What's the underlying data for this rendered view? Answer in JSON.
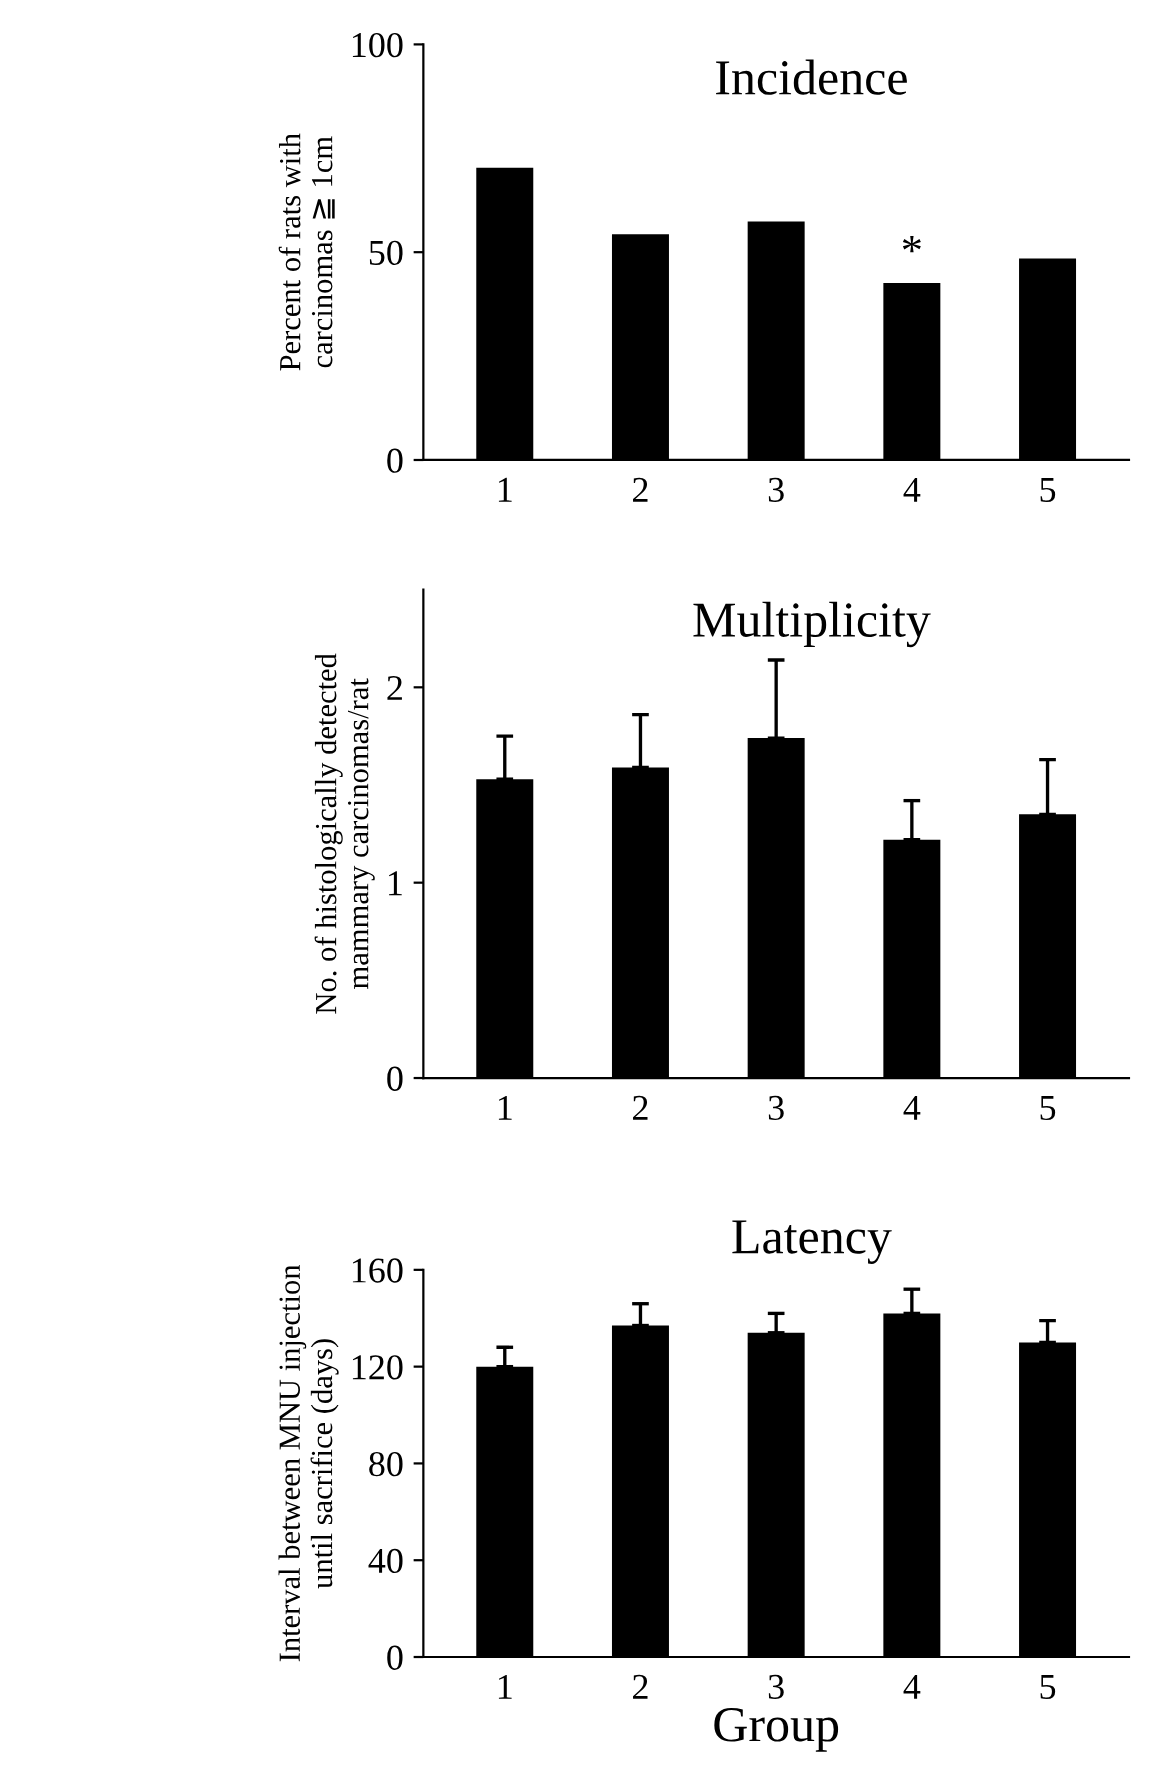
{
  "chart_data": [
    {
      "type": "bar",
      "title": "Incidence",
      "ylabel": "Percent of rats with\ncarcinomas ≧ 1cm",
      "categories": [
        "1",
        "2",
        "3",
        "4",
        "5"
      ],
      "values": [
        70.3,
        54.3,
        57.4,
        42.6,
        48.5
      ],
      "color": "#000000",
      "ylim": [
        0,
        100
      ],
      "yticks": [
        0,
        50,
        100
      ],
      "annotations": [
        {
          "text": "*",
          "x": "4",
          "y": 42.6
        }
      ]
    },
    {
      "type": "bar",
      "title": "Multiplicity",
      "ylabel": "No. of histologically detected\nmammary carcinomas/rat",
      "categories": [
        "1",
        "2",
        "3",
        "4",
        "5"
      ],
      "values": [
        1.53,
        1.59,
        1.74,
        1.22,
        1.35
      ],
      "errors": [
        [
          1.53,
          1.75
        ],
        [
          1.59,
          1.86
        ],
        [
          1.74,
          2.14
        ],
        [
          1.22,
          1.42
        ],
        [
          1.35,
          1.63
        ]
      ],
      "color": "#000000",
      "ylim": [
        0,
        2.5
      ],
      "yticks": [
        0,
        1,
        2
      ]
    },
    {
      "type": "bar",
      "title": "Latency",
      "ylabel": "Interval between MNU injection\nuntil sacrifice (days)",
      "xlabel": "Group",
      "categories": [
        "1",
        "2",
        "3",
        "4",
        "5"
      ],
      "values": [
        120,
        137,
        134,
        142,
        130
      ],
      "errors": [
        [
          120,
          128
        ],
        [
          137,
          146
        ],
        [
          134,
          142
        ],
        [
          142,
          152
        ],
        [
          130,
          139
        ]
      ],
      "color": "#000000",
      "ylim": [
        0,
        160
      ],
      "yticks": [
        0,
        40,
        80,
        120,
        160
      ]
    }
  ]
}
